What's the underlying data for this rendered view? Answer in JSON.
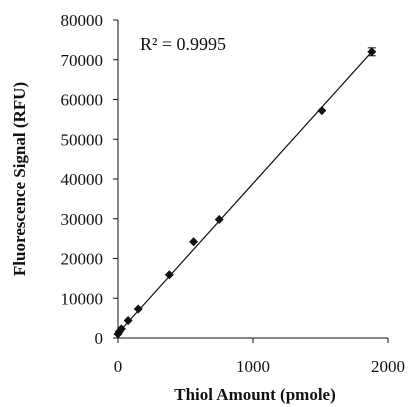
{
  "chart_data": {
    "type": "scatter",
    "xlabel": "Thiol Amount (pmole)",
    "ylabel": "Fluorescence Signal (RFU)",
    "xlim": [
      0,
      2000
    ],
    "ylim": [
      0,
      80000
    ],
    "x_ticks": [
      "0",
      "1000",
      "2000"
    ],
    "y_ticks": [
      "0",
      "10000",
      "20000",
      "30000",
      "40000",
      "50000",
      "60000",
      "70000",
      "80000"
    ],
    "grid": false,
    "legend": "none",
    "annotation": "R² = 0.9995",
    "marker": "diamond",
    "color": "#111111",
    "series": [
      {
        "x": [
          0,
          10,
          25,
          75,
          150,
          380,
          560,
          750,
          1510,
          1880
        ],
        "y": [
          1000,
          1600,
          2300,
          4400,
          7300,
          15900,
          24200,
          29800,
          57200,
          72000
        ],
        "yerr": [
          0,
          0,
          0,
          0,
          0,
          0,
          0,
          0,
          0,
          1000
        ]
      }
    ],
    "fit_line": {
      "x": [
        0,
        1880
      ],
      "y": [
        1200,
        72000
      ]
    }
  }
}
